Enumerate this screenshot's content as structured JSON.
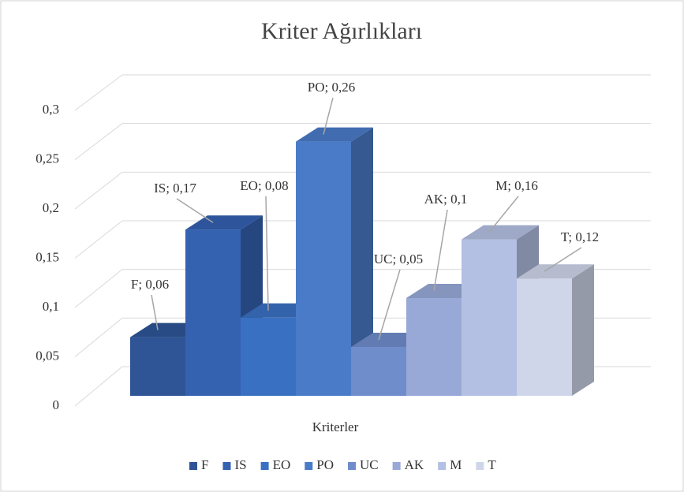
{
  "chart_data": {
    "type": "bar3d",
    "title": "Kriter Ağırlıkları",
    "categories": [
      "Kriterler"
    ],
    "series": [
      {
        "name": "F",
        "color": "#2f5597",
        "values": [
          0.06
        ],
        "value_labels": [
          "F; 0,06"
        ]
      },
      {
        "name": "IS",
        "color": "#3461b0",
        "values": [
          0.17
        ],
        "value_labels": [
          "IS; 0,17"
        ]
      },
      {
        "name": "EO",
        "color": "#3a70c2",
        "values": [
          0.08
        ],
        "value_labels": [
          "EO; 0,08"
        ]
      },
      {
        "name": "PO",
        "color": "#4a7bc8",
        "values": [
          0.26
        ],
        "value_labels": [
          "PO; 0,26"
        ]
      },
      {
        "name": "UC",
        "color": "#6f8dcb",
        "values": [
          0.05
        ],
        "value_labels": [
          "UC; 0,05"
        ]
      },
      {
        "name": "AK",
        "color": "#98a9d8",
        "values": [
          0.1
        ],
        "value_labels": [
          "AK; 0,1"
        ]
      },
      {
        "name": "M",
        "color": "#b3c0e3",
        "values": [
          0.16
        ],
        "value_labels": [
          "M; 0,16"
        ]
      },
      {
        "name": "T",
        "color": "#cfd6ea",
        "values": [
          0.12
        ],
        "value_labels": [
          "T; 0,12"
        ]
      }
    ],
    "ylim": [
      0,
      0.3
    ],
    "yticks": [
      0,
      {
        "value": 0.05,
        "label": "0,05"
      },
      {
        "value": 0.1,
        "label": "0,1"
      },
      {
        "value": 0.15,
        "label": "0,15"
      },
      {
        "value": 0.2,
        "label": "0,2"
      },
      {
        "value": 0.25,
        "label": "0,25"
      },
      {
        "value": 0.3,
        "label": "0,3"
      }
    ],
    "grid": true,
    "legend": "bottom"
  }
}
